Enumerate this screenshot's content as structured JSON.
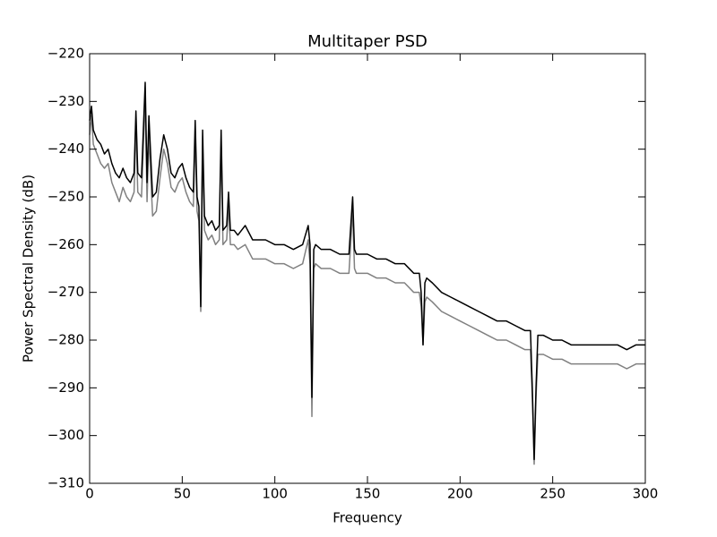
{
  "chart_data": {
    "type": "line",
    "title": "Multitaper PSD",
    "xlabel": "Frequency",
    "ylabel": "Power Spectral Density (dB)",
    "xlim": [
      0,
      300
    ],
    "xticks": [
      0,
      50,
      100,
      150,
      200,
      250,
      300
    ],
    "ylim": [
      -310,
      -220
    ],
    "yticks": [
      {
        "value": -310,
        "label": "−310"
      },
      {
        "value": -300,
        "label": "−300"
      },
      {
        "value": -290,
        "label": "−290"
      },
      {
        "value": -280,
        "label": "−280"
      },
      {
        "value": -270,
        "label": "−270"
      },
      {
        "value": -260,
        "label": "−260"
      },
      {
        "value": -250,
        "label": "−250"
      },
      {
        "value": -240,
        "label": "−240"
      },
      {
        "value": -230,
        "label": "−230"
      },
      {
        "value": -220,
        "label": "−220"
      }
    ],
    "grid": false,
    "x": [
      0,
      1,
      2,
      4,
      6,
      8,
      10,
      12,
      14,
      16,
      18,
      20,
      22,
      24,
      25,
      26,
      28,
      30,
      31,
      32,
      34,
      36,
      38,
      40,
      42,
      44,
      46,
      48,
      50,
      52,
      54,
      56,
      57,
      58,
      59,
      60,
      61,
      62,
      64,
      66,
      68,
      70,
      71,
      72,
      74,
      75,
      76,
      78,
      80,
      84,
      88,
      90,
      95,
      100,
      105,
      110,
      115,
      118,
      119,
      120,
      121,
      122,
      125,
      130,
      135,
      140,
      142,
      143,
      144,
      150,
      155,
      160,
      165,
      170,
      175,
      178,
      179,
      180,
      181,
      182,
      185,
      190,
      195,
      200,
      205,
      210,
      215,
      220,
      225,
      230,
      235,
      238,
      239,
      240,
      241,
      242,
      245,
      250,
      255,
      260,
      265,
      270,
      275,
      280,
      285,
      290,
      295,
      300
    ],
    "series": [
      {
        "color": "#808080",
        "values": [
          -237,
          -233,
          -239,
          -241,
          -243,
          -244,
          -243,
          -247,
          -249,
          -251,
          -248,
          -250,
          -251,
          -249,
          -235,
          -249,
          -250,
          -229,
          -251,
          -237,
          -254,
          -253,
          -246,
          -240,
          -243,
          -248,
          -249,
          -247,
          -246,
          -249,
          -251,
          -252,
          -237,
          -253,
          -255,
          -274,
          -239,
          -257,
          -259,
          -258,
          -260,
          -259,
          -239,
          -260,
          -259,
          -252,
          -260,
          -260,
          -261,
          -260,
          -263,
          -263,
          -263,
          -264,
          -264,
          -265,
          -264,
          -259,
          -264,
          -296,
          -265,
          -264,
          -265,
          -265,
          -266,
          -266,
          -253,
          -265,
          -266,
          -266,
          -267,
          -267,
          -268,
          -268,
          -270,
          -270,
          -273,
          -281,
          -272,
          -271,
          -272,
          -274,
          -275,
          -276,
          -277,
          -278,
          -279,
          -280,
          -280,
          -281,
          -282,
          -282,
          -292,
          -306,
          -292,
          -283,
          -283,
          -284,
          -284,
          -285,
          -285,
          -285,
          -285,
          -285,
          -285,
          -286,
          -285,
          -285
        ]
      },
      {
        "color": "#000000",
        "values": [
          -234,
          -231,
          -236,
          -238,
          -239,
          -241,
          -240,
          -243,
          -245,
          -246,
          -244,
          -246,
          -247,
          -245,
          -232,
          -245,
          -246,
          -226,
          -247,
          -233,
          -250,
          -249,
          -242,
          -237,
          -240,
          -245,
          -246,
          -244,
          -243,
          -246,
          -248,
          -249,
          -234,
          -250,
          -252,
          -273,
          -236,
          -254,
          -256,
          -255,
          -257,
          -256,
          -236,
          -257,
          -256,
          -249,
          -257,
          -257,
          -258,
          -256,
          -259,
          -259,
          -259,
          -260,
          -260,
          -261,
          -260,
          -256,
          -260,
          -292,
          -261,
          -260,
          -261,
          -261,
          -262,
          -262,
          -250,
          -261,
          -262,
          -262,
          -263,
          -263,
          -264,
          -264,
          -266,
          -266,
          -270,
          -281,
          -268,
          -267,
          -268,
          -270,
          -271,
          -272,
          -273,
          -274,
          -275,
          -276,
          -276,
          -277,
          -278,
          -278,
          -290,
          -305,
          -290,
          -279,
          -279,
          -280,
          -280,
          -281,
          -281,
          -281,
          -281,
          -281,
          -281,
          -282,
          -281,
          -281
        ]
      }
    ]
  }
}
